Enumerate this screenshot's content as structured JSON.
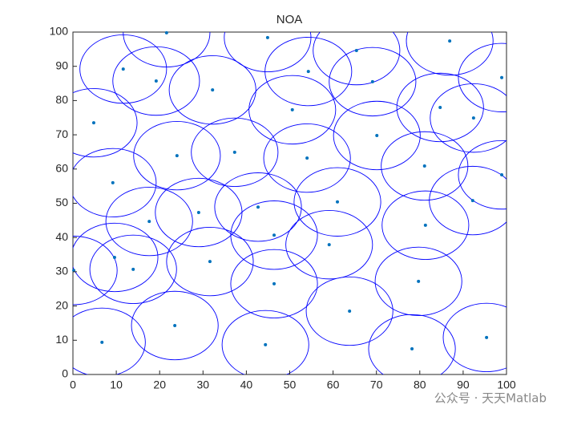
{
  "chart_data": {
    "type": "scatter",
    "title": "NOA",
    "x": [
      21.6,
      44.9,
      86.9,
      65.4,
      11.6,
      54.3,
      98.9,
      69.1,
      19.2,
      32.2,
      84.7,
      50.6,
      92.4,
      4.8,
      70.1,
      24.0,
      37.3,
      54.0,
      81.1,
      98.9,
      9.2,
      61.0,
      92.2,
      42.7,
      29.0,
      17.6,
      81.3,
      46.4,
      59.1,
      9.6,
      13.9,
      31.6,
      0.2,
      79.7,
      46.4,
      63.8,
      23.5,
      95.4,
      6.7,
      44.4,
      78.2
    ],
    "y": [
      99.8,
      98.4,
      97.4,
      94.6,
      89.2,
      88.5,
      86.7,
      85.5,
      85.7,
      83.1,
      78.0,
      77.3,
      74.9,
      73.5,
      69.8,
      63.9,
      64.9,
      63.2,
      60.9,
      58.3,
      56.0,
      50.4,
      50.8,
      48.9,
      47.3,
      44.7,
      43.6,
      40.7,
      37.9,
      34.2,
      30.7,
      33.0,
      30.4,
      27.2,
      26.5,
      18.5,
      14.3,
      10.8,
      9.4,
      8.7,
      7.5
    ],
    "coverage_radius": 10,
    "color": "#0072bd",
    "circle_color": "#0000ff",
    "xlim": [
      0,
      100
    ],
    "ylim": [
      0,
      100
    ],
    "xticks": [
      0,
      10,
      20,
      30,
      40,
      50,
      60,
      70,
      80,
      90,
      100
    ],
    "yticks": [
      0,
      10,
      20,
      30,
      40,
      50,
      60,
      70,
      80,
      90,
      100
    ]
  },
  "watermark": "公众号 · 天天Matlab"
}
